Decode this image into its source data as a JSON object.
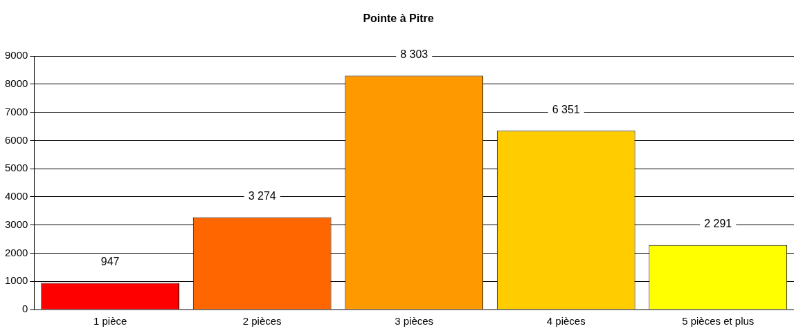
{
  "chart_data": {
    "type": "bar",
    "title": "Pointe à Pitre",
    "categories": [
      "1 pièce",
      "2 pièces",
      "3 pièces",
      "4 pièces",
      "5 pièces et plus"
    ],
    "values": [
      947,
      3274,
      8303,
      6351,
      2291
    ],
    "colors": [
      "#ff0000",
      "#ff6600",
      "#ff9900",
      "#ffcc00",
      "#ffff00"
    ],
    "value_labels": [
      "947",
      "3 274",
      "8 303",
      "6 351",
      "2 291"
    ],
    "ylim": [
      0,
      9000
    ],
    "yticks": [
      0,
      1000,
      2000,
      3000,
      4000,
      5000,
      6000,
      7000,
      8000,
      9000
    ],
    "grid": "y",
    "legend": false
  }
}
